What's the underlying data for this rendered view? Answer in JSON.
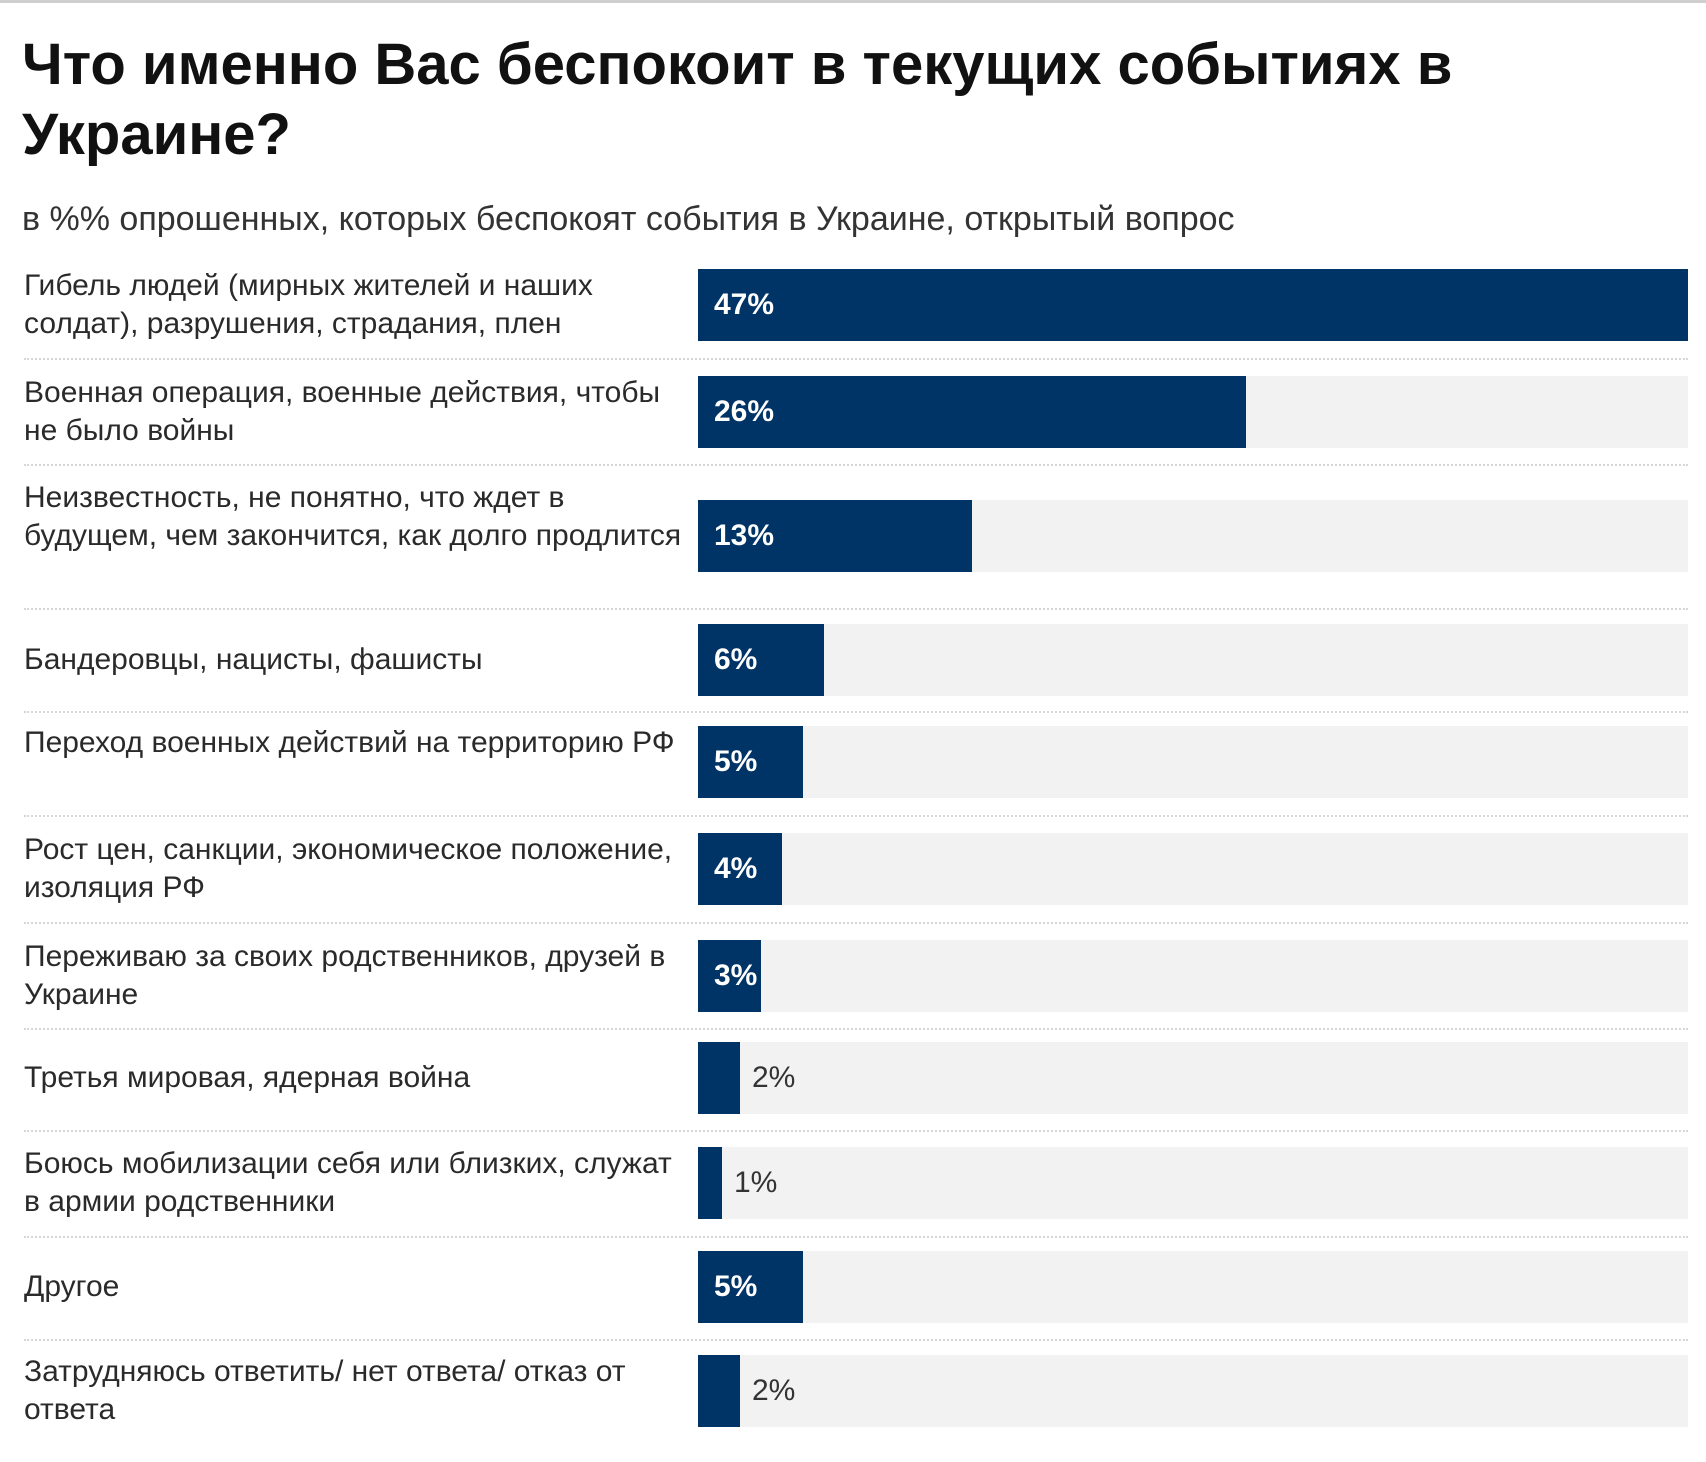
{
  "title": "Что именно Вас беспокоит в текущих событиях в Украине?",
  "subtitle": "в %% опрошенных, которых беспокоят события в Украине, открытый вопрос",
  "colors": {
    "bar": "#003366",
    "track": "#f2f2f2"
  },
  "chart_data": {
    "type": "bar",
    "orientation": "horizontal",
    "title": "Что именно Вас беспокоит в текущих событиях в Украине?",
    "subtitle": "в %% опрошенных, которых беспокоят события в Украине, открытый вопрос",
    "xlim": [
      0,
      47
    ],
    "grid": false,
    "categories": [
      "Гибель людей (мирных жителей и наших солдат), разрушения, страдания, плен",
      "Военная операция, военные действия, чтобы не было войны",
      "Неизвестность, не понятно, что ждет в будущем, чем закончится, как долго продлится",
      "Бандеровцы, нацисты, фашисты",
      "Переход военных действий на территорию РФ",
      "Рост цен, санкции, экономическое положение, изоляция РФ",
      "Переживаю за своих родственников, друзей в Украине",
      "Третья мировая, ядерная война",
      "Боюсь мобилизации себя или близких, служат в армии родственники",
      "Другое",
      "Затрудняюсь ответить/ нет ответа/ отказ от ответа"
    ],
    "values": [
      47,
      26,
      13,
      6,
      5,
      4,
      3,
      2,
      1,
      5,
      2
    ],
    "value_labels": [
      "47%",
      "26%",
      "13%",
      "6%",
      "5%",
      "4%",
      "3%",
      "2%",
      "1%",
      "5%",
      "2%"
    ]
  }
}
